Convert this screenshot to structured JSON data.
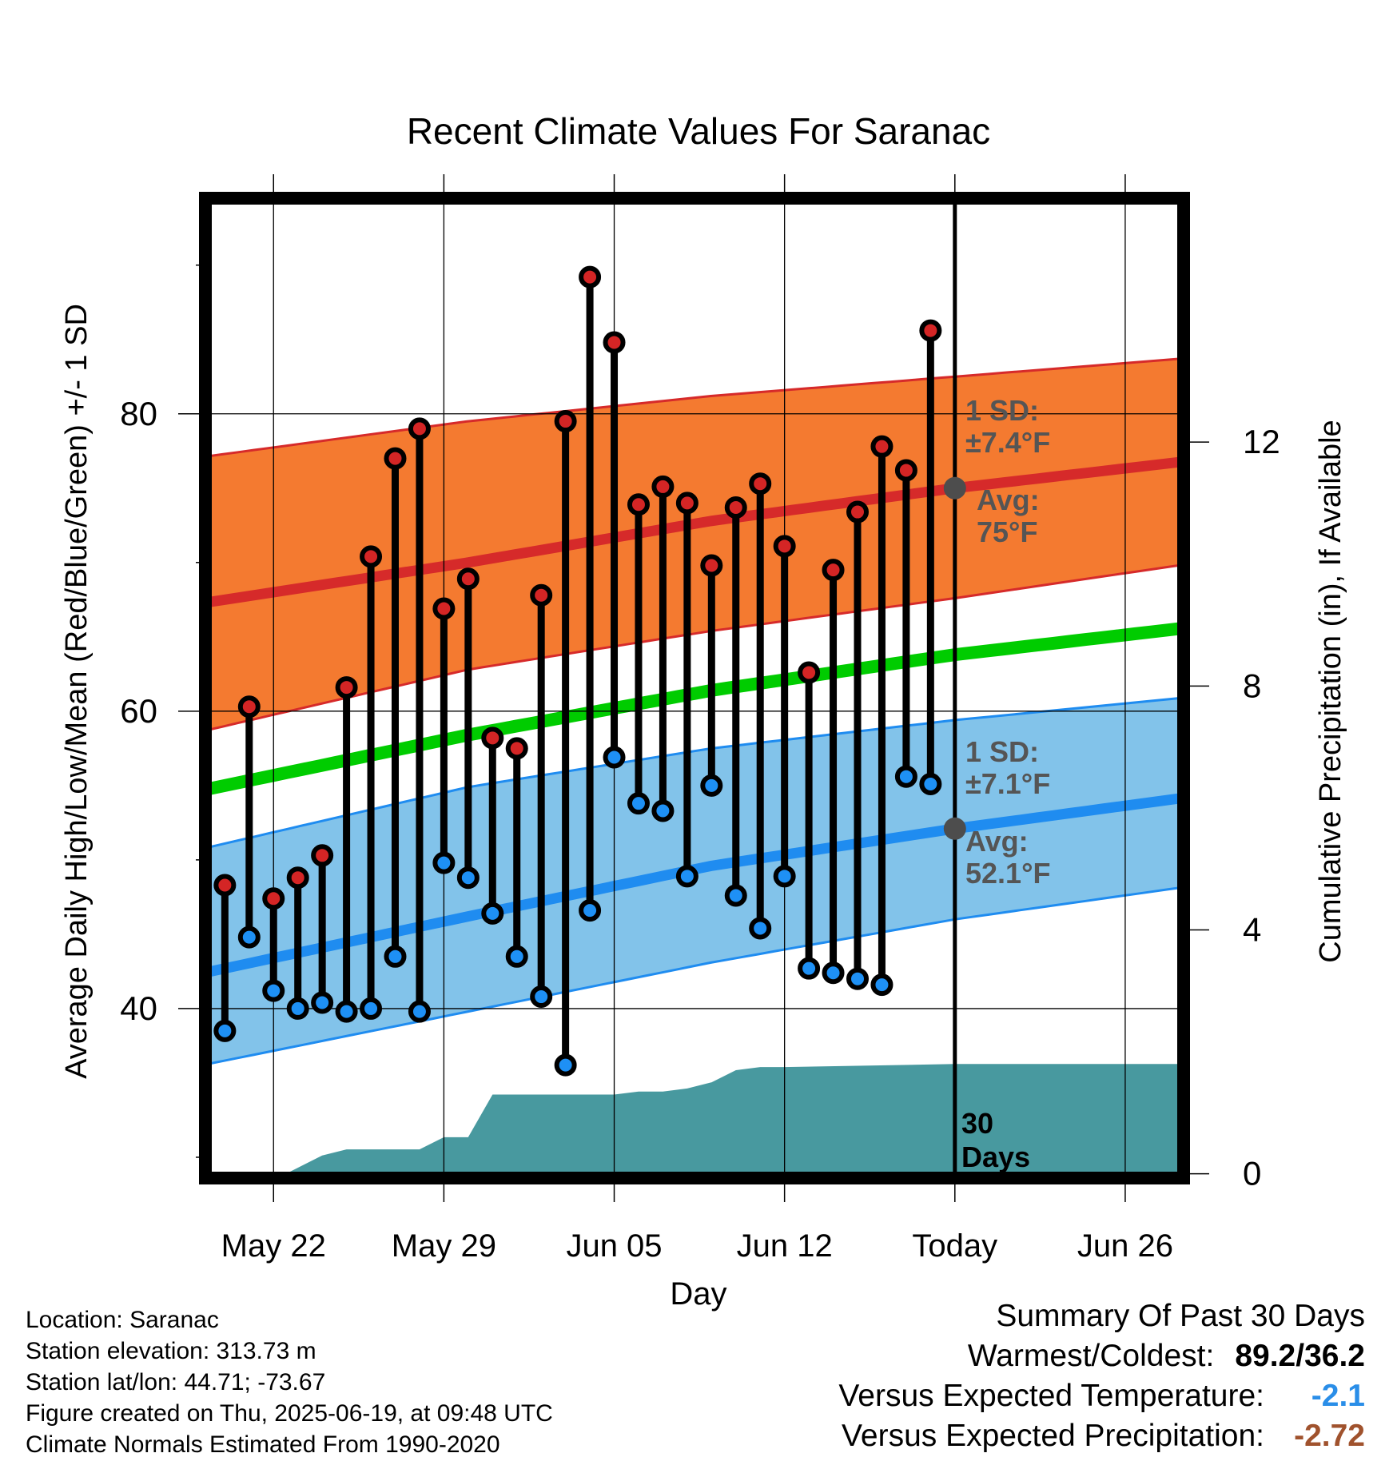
{
  "chart_data": {
    "type": "line",
    "title": "Recent Climate Values For Saranac",
    "xlabel": "Day",
    "ylabel_left": "Average Daily High/Low/Mean (Red/Blue/Green) +/- 1 SD",
    "ylabel_right": "Cumulative Precipitation (in), If Available",
    "x_ticks": [
      {
        "day": 2,
        "label": "May 22"
      },
      {
        "day": 9,
        "label": "May 29"
      },
      {
        "day": 16,
        "label": "Jun 05"
      },
      {
        "day": 23,
        "label": "Jun 12"
      },
      {
        "day": 30,
        "label": "Today"
      },
      {
        "day": 37,
        "label": "Jun 26"
      }
    ],
    "xlim": [
      -0.8,
      39.4
    ],
    "ylim": [
      28.6,
      94.5
    ],
    "y_ticks": [
      40,
      60,
      80
    ],
    "precip_ylim": [
      -0.07,
      16
    ],
    "precip_ticks": [
      0,
      4,
      8,
      12
    ],
    "today_day": 30,
    "today_label": "30\nDays",
    "high_normal": {
      "days": [
        0,
        10,
        20,
        30,
        40
      ],
      "upper": [
        77.3,
        79.5,
        81.2,
        82.5,
        83.8
      ],
      "mean": [
        67.5,
        70.0,
        72.8,
        75.0,
        76.9
      ],
      "lower": [
        59.0,
        62.8,
        65.4,
        67.6,
        70.0
      ],
      "sd_label": "1 SD:\n±7.4°F",
      "avg_label": "Avg:\n75°F",
      "avg_value": 75
    },
    "mean_normal": {
      "days": [
        0,
        10,
        20,
        30,
        40
      ],
      "values": [
        55.0,
        58.4,
        61.4,
        63.8,
        65.7
      ]
    },
    "low_normal": {
      "days": [
        0,
        10,
        20,
        30,
        40
      ],
      "upper": [
        51.1,
        54.9,
        57.5,
        59.4,
        61.0
      ],
      "mean": [
        42.7,
        46.2,
        49.6,
        52.1,
        54.3
      ],
      "lower": [
        36.5,
        39.8,
        43.1,
        46.0,
        48.3
      ],
      "sd_label": "1 SD:\n±7.1°F",
      "avg_label": "Avg:\n52.1°F",
      "avg_value": 52.1
    },
    "daily": {
      "days": [
        0,
        1,
        2,
        3,
        4,
        5,
        6,
        7,
        8,
        9,
        10,
        11,
        12,
        13,
        14,
        15,
        16,
        17,
        18,
        19,
        20,
        21,
        22,
        23,
        24,
        25,
        26,
        27,
        28,
        29
      ],
      "high": [
        48.3,
        60.3,
        47.4,
        48.8,
        50.3,
        61.6,
        70.4,
        77.0,
        79.0,
        66.9,
        68.9,
        58.2,
        57.5,
        67.8,
        79.5,
        89.2,
        84.8,
        73.9,
        75.1,
        74.0,
        69.8,
        73.7,
        75.3,
        71.1,
        62.6,
        69.5,
        73.4,
        77.8,
        76.2,
        85.6
      ],
      "low": [
        38.5,
        44.8,
        41.2,
        40.0,
        40.4,
        39.8,
        40.0,
        43.5,
        39.8,
        49.8,
        48.8,
        46.4,
        43.5,
        40.8,
        36.2,
        46.6,
        56.9,
        53.8,
        53.3,
        48.9,
        55.0,
        47.6,
        45.4,
        48.9,
        42.7,
        42.4,
        42.0,
        41.6,
        55.6,
        55.1
      ]
    },
    "precip": {
      "days": [
        -0.8,
        2.5,
        4,
        5,
        7,
        8,
        9,
        10,
        11,
        12,
        16,
        17,
        18,
        19,
        20,
        21,
        22,
        23,
        30,
        39.4
      ],
      "values": [
        0,
        0,
        0.3,
        0.4,
        0.4,
        0.4,
        0.6,
        0.6,
        1.3,
        1.3,
        1.3,
        1.35,
        1.35,
        1.4,
        1.5,
        1.7,
        1.75,
        1.75,
        1.8,
        1.8
      ]
    },
    "colors": {
      "high_band": "#f47a30",
      "high_line": "#d62a2a",
      "mean_line": "#00cc00",
      "low_band": "#82c3ea",
      "low_line": "#1f8cf0",
      "precip": "#48999f",
      "high_marker": "#d42525",
      "low_marker": "#1e90f5"
    },
    "grid": true
  },
  "footer": {
    "location": "Location: Saranac",
    "elevation": "Station elevation: 313.73 m",
    "latlon": "Station lat/lon: 44.71; -73.67",
    "created": "Figure created on Thu, 2025-06-19, at 09:48 UTC",
    "normals": "Climate Normals Estimated From 1990-2020"
  },
  "summary": {
    "title": "Summary Of Past 30 Days",
    "warmest_label": "Warmest/Coldest:",
    "warmest_value": "89.2/36.2",
    "temp_label": "Versus Expected Temperature:",
    "temp_value": "-2.1",
    "temp_color": "#2a8ee8",
    "precip_label": "Versus Expected Precipitation:",
    "precip_value": "-2.72",
    "precip_color": "#a0522d"
  }
}
